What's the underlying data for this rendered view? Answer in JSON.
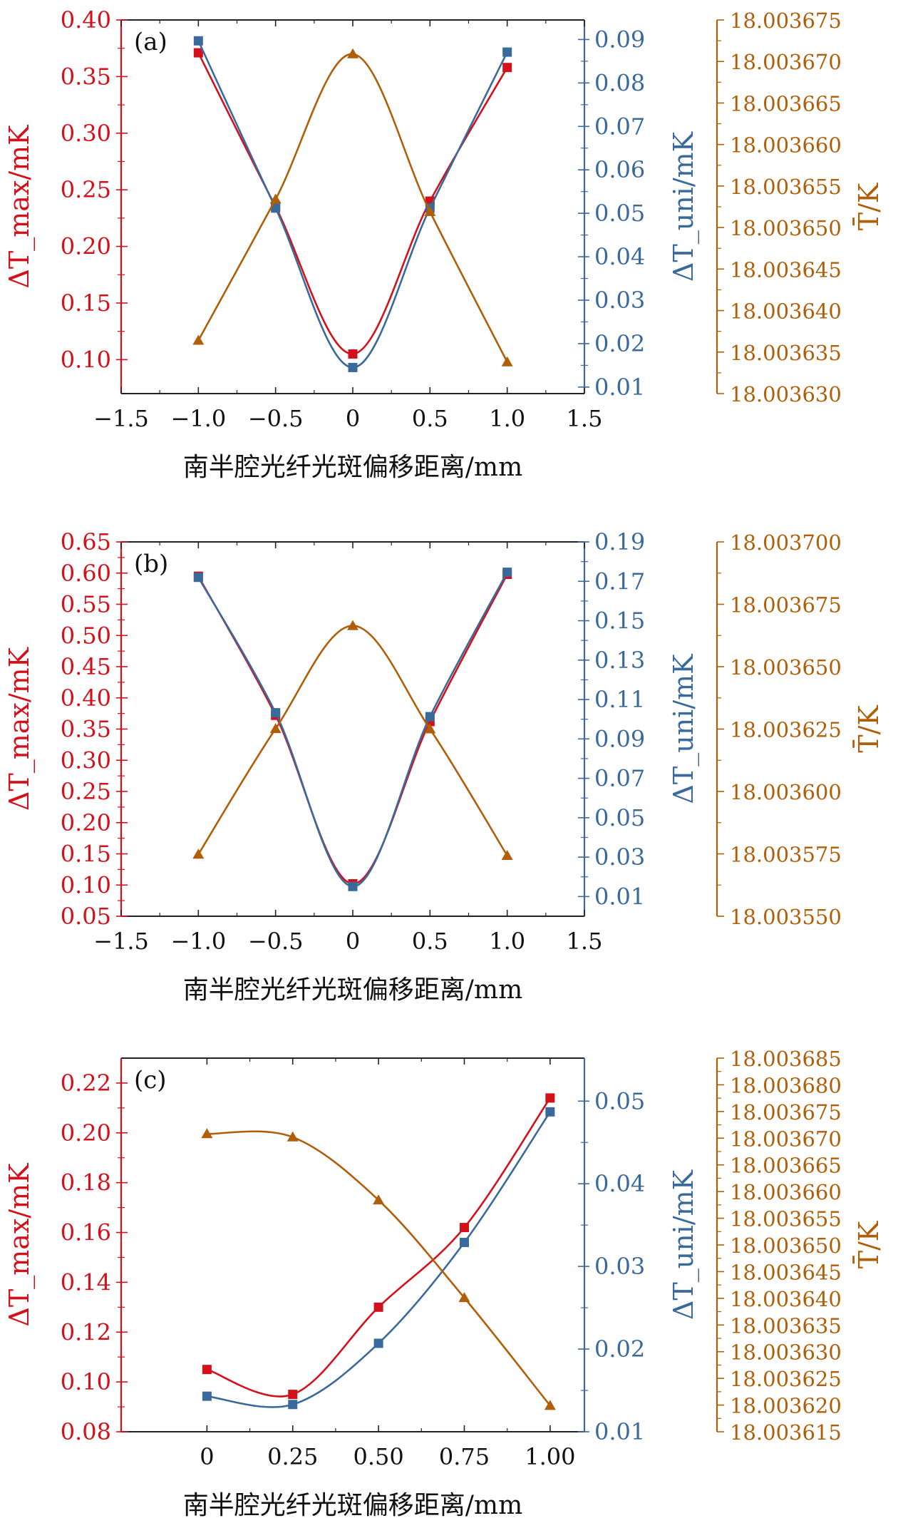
{
  "colors": {
    "red": "#d4111b",
    "blue": "#3a6a9c",
    "brown": "#b05e08",
    "axis": "#222222"
  },
  "chart_data": [
    {
      "type": "line",
      "panel_label": "(a)",
      "xlabel": "南半腔光纤光斑偏移距离/mm",
      "xlim": [
        -1.5,
        1.5
      ],
      "xticks": [
        -1.5,
        -1.0,
        -0.5,
        0,
        0.5,
        1.0,
        1.5
      ],
      "xtick_labels": [
        "−1.5",
        "−1.0",
        "−0.5",
        "0",
        "0.5",
        "1.0",
        "1.5"
      ],
      "x": [
        -1.0,
        -0.5,
        0,
        0.5,
        1.0
      ],
      "axes": {
        "left": {
          "label": "ΔT_max/mK",
          "ylim": [
            0.07,
            0.4
          ],
          "ticks": [
            0.1,
            0.15,
            0.2,
            0.25,
            0.3,
            0.35,
            0.4
          ],
          "tick_labels": [
            "0.10",
            "0.15",
            "0.20",
            "0.25",
            "0.30",
            "0.35",
            "0.40"
          ]
        },
        "right": {
          "label": "ΔT_uni/mK",
          "ylim": [
            0.0085,
            0.0945
          ],
          "ticks": [
            0.01,
            0.02,
            0.03,
            0.04,
            0.05,
            0.06,
            0.07,
            0.08,
            0.09
          ],
          "tick_labels": [
            "0.01",
            "0.02",
            "0.03",
            "0.04",
            "0.05",
            "0.06",
            "0.07",
            "0.08",
            "0.09"
          ]
        },
        "far": {
          "label": "T̄/K",
          "ylim": [
            18.00363,
            18.003675
          ],
          "ticks": [
            18.00363,
            18.003635,
            18.00364,
            18.003645,
            18.00365,
            18.003655,
            18.00366,
            18.003665,
            18.00367,
            18.003675
          ],
          "tick_labels": [
            "18.003630",
            "18.003635",
            "18.003640",
            "18.003645",
            "18.003650",
            "18.003655",
            "18.003660",
            "18.003665",
            "18.003670",
            "18.003675"
          ]
        }
      },
      "series": [
        {
          "axis": "left",
          "marker": "square",
          "color": "red",
          "values": [
            0.371,
            0.235,
            0.105,
            0.24,
            0.358
          ]
        },
        {
          "axis": "right",
          "marker": "square",
          "color": "blue",
          "values": [
            0.0897,
            0.0512,
            0.0145,
            0.0512,
            0.0871
          ]
        },
        {
          "axis": "far",
          "marker": "triangle",
          "color": "brown",
          "values": [
            18.0036364,
            18.0036534,
            18.0036709,
            18.0036519,
            18.0036338
          ]
        }
      ]
    },
    {
      "type": "line",
      "panel_label": "(b)",
      "xlabel": "南半腔光纤光斑偏移距离/mm",
      "xlim": [
        -1.5,
        1.5
      ],
      "xticks": [
        -1.5,
        -1.0,
        -0.5,
        0,
        0.5,
        1.0,
        1.5
      ],
      "xtick_labels": [
        "−1.5",
        "−1.0",
        "−0.5",
        "0",
        "0.5",
        "1.0",
        "1.5"
      ],
      "x": [
        -1.0,
        -0.5,
        0,
        0.5,
        1.0
      ],
      "axes": {
        "left": {
          "label": "ΔT_max/mK",
          "ylim": [
            0.05,
            0.65
          ],
          "ticks": [
            0.05,
            0.1,
            0.15,
            0.2,
            0.25,
            0.3,
            0.35,
            0.4,
            0.45,
            0.5,
            0.55,
            0.6,
            0.65
          ],
          "tick_labels": [
            "0.05",
            "0.10",
            "0.15",
            "0.20",
            "0.25",
            "0.30",
            "0.35",
            "0.40",
            "0.45",
            "0.50",
            "0.55",
            "0.60",
            "0.65"
          ]
        },
        "right": {
          "label": "ΔT_uni/mK",
          "ylim": [
            0.0,
            0.19
          ],
          "ticks": [
            0.01,
            0.03,
            0.05,
            0.07,
            0.09,
            0.11,
            0.13,
            0.15,
            0.17,
            0.19
          ],
          "tick_labels": [
            "0.01",
            "0.03",
            "0.05",
            "0.07",
            "0.09",
            "0.11",
            "0.13",
            "0.15",
            "0.17",
            "0.19"
          ]
        },
        "far": {
          "label": "T̄/K",
          "ylim": [
            18.00355,
            18.0037
          ],
          "ticks": [
            18.00355,
            18.003575,
            18.0036,
            18.003625,
            18.00365,
            18.003675,
            18.0037
          ],
          "tick_labels": [
            "18.003550",
            "18.003575",
            "18.003600",
            "18.003625",
            "18.003650",
            "18.003675",
            "18.003700"
          ]
        }
      },
      "series": [
        {
          "axis": "left",
          "marker": "square",
          "color": "red",
          "values": [
            0.595,
            0.372,
            0.102,
            0.362,
            0.598
          ]
        },
        {
          "axis": "right",
          "marker": "square",
          "color": "blue",
          "values": [
            0.172,
            0.1033,
            0.0151,
            0.1013,
            0.1746
          ]
        },
        {
          "axis": "far",
          "marker": "triangle",
          "color": "brown",
          "values": [
            18.0035748,
            18.0036251,
            18.0036664,
            18.003625,
            18.0035743
          ]
        }
      ]
    },
    {
      "type": "line",
      "panel_label": "(c)",
      "xlabel": "南半腔光纤光斑偏移距离/mm",
      "xlim": [
        -0.25,
        1.1
      ],
      "xticks": [
        0,
        0.25,
        0.5,
        0.75,
        1.0
      ],
      "xtick_labels": [
        "0",
        "0.25",
        "0.50",
        "0.75",
        "1.00"
      ],
      "x": [
        0,
        0.25,
        0.5,
        0.75,
        1.0
      ],
      "axes": {
        "left": {
          "label": "ΔT_max/mK",
          "ylim": [
            0.08,
            0.23
          ],
          "ticks": [
            0.08,
            0.1,
            0.12,
            0.14,
            0.16,
            0.18,
            0.2,
            0.22
          ],
          "tick_labels": [
            "0.08",
            "0.10",
            "0.12",
            "0.14",
            "0.16",
            "0.18",
            "0.20",
            "0.22"
          ]
        },
        "right": {
          "label": "ΔT_uni/mK",
          "ylim": [
            0.01,
            0.0552
          ],
          "ticks": [
            0.01,
            0.02,
            0.03,
            0.04,
            0.05
          ],
          "tick_labels": [
            "0.01",
            "0.02",
            "0.03",
            "0.04",
            "0.05"
          ]
        },
        "far": {
          "label": "T̄/K",
          "ylim": [
            18.003615,
            18.003685
          ],
          "ticks": [
            18.003615,
            18.00362,
            18.003625,
            18.00363,
            18.003635,
            18.00364,
            18.003645,
            18.00365,
            18.003655,
            18.00366,
            18.003665,
            18.00367,
            18.003675,
            18.00368,
            18.003685
          ],
          "tick_labels": [
            "18.003615",
            "18.003620",
            "18.003625",
            "18.003630",
            "18.003635",
            "18.003640",
            "18.003645",
            "18.003650",
            "18.003655",
            "18.003660",
            "18.003665",
            "18.003670",
            "18.003675",
            "18.003680",
            "18.003685"
          ]
        }
      },
      "series": [
        {
          "axis": "left",
          "marker": "square",
          "color": "red",
          "values": [
            0.105,
            0.095,
            0.13,
            0.162,
            0.214
          ]
        },
        {
          "axis": "right",
          "marker": "square",
          "color": "blue",
          "values": [
            0.0143,
            0.0133,
            0.0207,
            0.0329,
            0.0487
          ]
        },
        {
          "axis": "far",
          "marker": "triangle",
          "color": "brown",
          "values": [
            18.0036708,
            18.0036702,
            18.0036584,
            18.0036401,
            18.0036199
          ]
        }
      ]
    }
  ]
}
